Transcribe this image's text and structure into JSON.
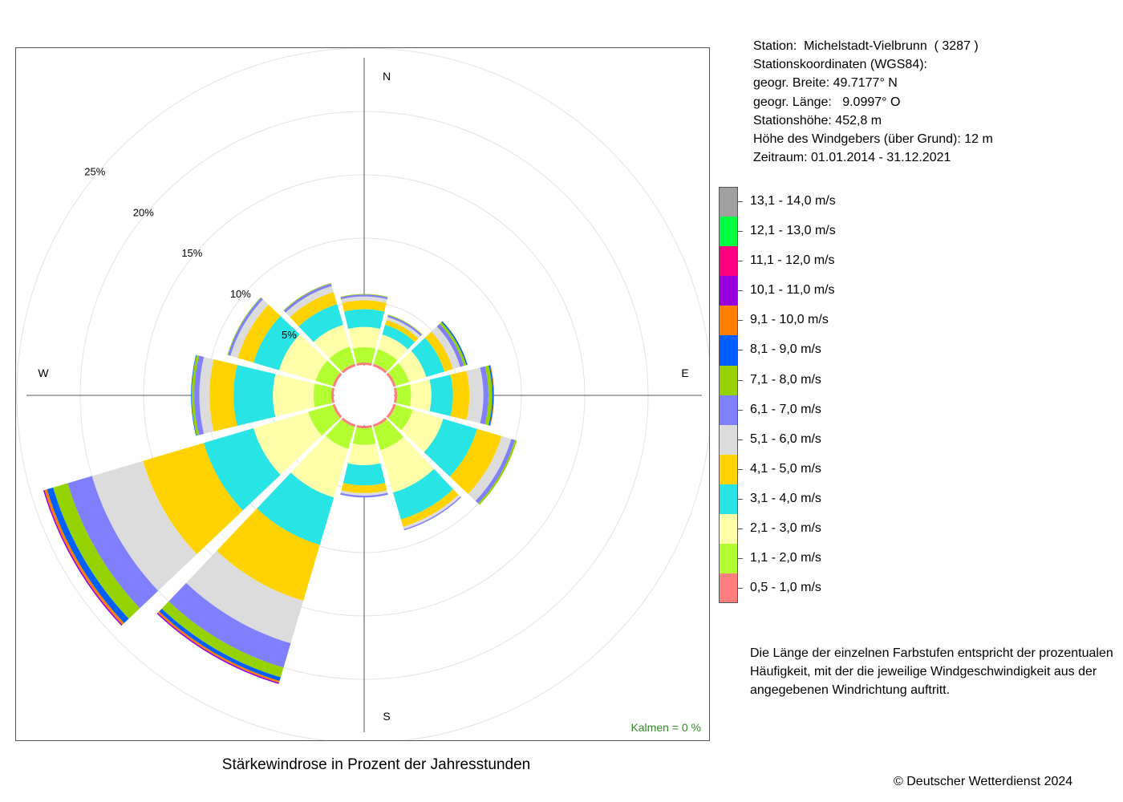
{
  "station": {
    "lines": [
      "Station:  Michelstadt-Vielbrunn  ( 3287 )",
      "Stationskoordinaten (WGS84):",
      "geogr. Breite: 49.7177° N",
      "geogr. Länge:   9.0997° O",
      "Stationshöhe: 452,8 m",
      "Höhe des Windgebers (über Grund): 12 m",
      "Zeitraum: 01.01.2014 - 31.12.2021"
    ]
  },
  "calm": "Kalmen  =  0 %",
  "caption": "Stärkewindrose in Prozent der Jahresstunden",
  "note": "Die Länge der einzelnen Farbstufen entspricht der prozentualen Häufigkeit, mit der die jeweilige Windgeschwindigkeit aus der angegebenen Windrichtung auftritt.",
  "copyright": "© Deutscher Wetterdienst  2024",
  "chart_data": {
    "type": "wind-rose",
    "title": "Stärkewindrose in Prozent der Jahresstunden",
    "unit": "%",
    "radial_ticks": [
      5,
      10,
      15,
      20,
      25
    ],
    "radial_tick_labels": [
      "5%",
      "10%",
      "15%",
      "20%",
      "25%"
    ],
    "directions": [
      "N",
      "E",
      "S",
      "W"
    ],
    "sectors_deg": [
      0,
      30,
      60,
      90,
      120,
      150,
      180,
      210,
      240,
      270,
      300,
      330
    ],
    "classes": [
      {
        "name": "0,5 - 1,0 m/s",
        "color": "#ff7f7f"
      },
      {
        "name": "1,1 - 2,0 m/s",
        "color": "#b4ff32"
      },
      {
        "name": "2,1 - 3,0 m/s",
        "color": "#ffffaa"
      },
      {
        "name": "3,1 - 4,0 m/s",
        "color": "#28e4e4"
      },
      {
        "name": "4,1 - 5,0 m/s",
        "color": "#ffd200"
      },
      {
        "name": "5,1 - 6,0 m/s",
        "color": "#dcdcdc"
      },
      {
        "name": "6,1 - 7,0 m/s",
        "color": "#8080ff"
      },
      {
        "name": "7,1 - 8,0 m/s",
        "color": "#96d200"
      },
      {
        "name": "8,1 - 9,0 m/s",
        "color": "#0060ff"
      },
      {
        "name": "9,1 - 10,0 m/s",
        "color": "#ff8000"
      },
      {
        "name": "10,1 - 11,0 m/s",
        "color": "#9600dc"
      },
      {
        "name": "11,1 - 12,0 m/s",
        "color": "#ff0080"
      },
      {
        "name": "12,1 - 13,0 m/s",
        "color": "#00ff40"
      },
      {
        "name": "13,1 - 14,0 m/s",
        "color": "#a0a0a0"
      }
    ],
    "values": [
      [
        0.2,
        1.2,
        1.6,
        1.4,
        0.7,
        0.3,
        0.15,
        0.05,
        0.0,
        0.0,
        0.0,
        0.0,
        0.0,
        0.0
      ],
      [
        0.2,
        1.2,
        1.2,
        0.8,
        0.4,
        0.25,
        0.15,
        0.05,
        0.0,
        0.0,
        0.0,
        0.0,
        0.0,
        0.0
      ],
      [
        0.2,
        1.1,
        1.4,
        1.5,
        0.7,
        0.6,
        0.3,
        0.2,
        0.1,
        0.0,
        0.0,
        0.0,
        0.0,
        0.0
      ],
      [
        0.2,
        1.1,
        1.6,
        1.7,
        1.3,
        1.1,
        0.4,
        0.3,
        0.1,
        0.05,
        0.0,
        0.0,
        0.0,
        0.0
      ],
      [
        0.2,
        1.4,
        2.5,
        2.8,
        2.0,
        0.8,
        0.3,
        0.15,
        0.0,
        0.0,
        0.0,
        0.0,
        0.0,
        0.0
      ],
      [
        0.2,
        1.9,
        3.5,
        2.2,
        0.6,
        0.2,
        0.1,
        0.0,
        0.0,
        0.0,
        0.0,
        0.0,
        0.0,
        0.0
      ],
      [
        0.2,
        1.3,
        1.6,
        1.6,
        0.6,
        0.2,
        0.15,
        0.0,
        0.0,
        0.0,
        0.0,
        0.0,
        0.0,
        0.0
      ],
      [
        0.2,
        1.8,
        4.0,
        3.9,
        4.6,
        3.5,
        2.0,
        0.8,
        0.3,
        0.15,
        0.1,
        0.0,
        0.0,
        0.0
      ],
      [
        0.2,
        2.0,
        4.5,
        4.1,
        5.0,
        4.2,
        2.0,
        1.2,
        0.5,
        0.2,
        0.1,
        0.0,
        0.0,
        0.0
      ],
      [
        0.2,
        1.4,
        3.2,
        3.1,
        1.9,
        0.8,
        0.4,
        0.2,
        0.05,
        0.0,
        0.0,
        0.0,
        0.0,
        0.0
      ],
      [
        0.2,
        1.4,
        3.0,
        2.1,
        1.3,
        0.6,
        0.2,
        0.05,
        0.0,
        0.0,
        0.0,
        0.0,
        0.0,
        0.0
      ],
      [
        0.2,
        1.4,
        1.8,
        1.7,
        1.0,
        0.5,
        0.2,
        0.05,
        0.0,
        0.0,
        0.0,
        0.0,
        0.0,
        0.0
      ]
    ]
  }
}
